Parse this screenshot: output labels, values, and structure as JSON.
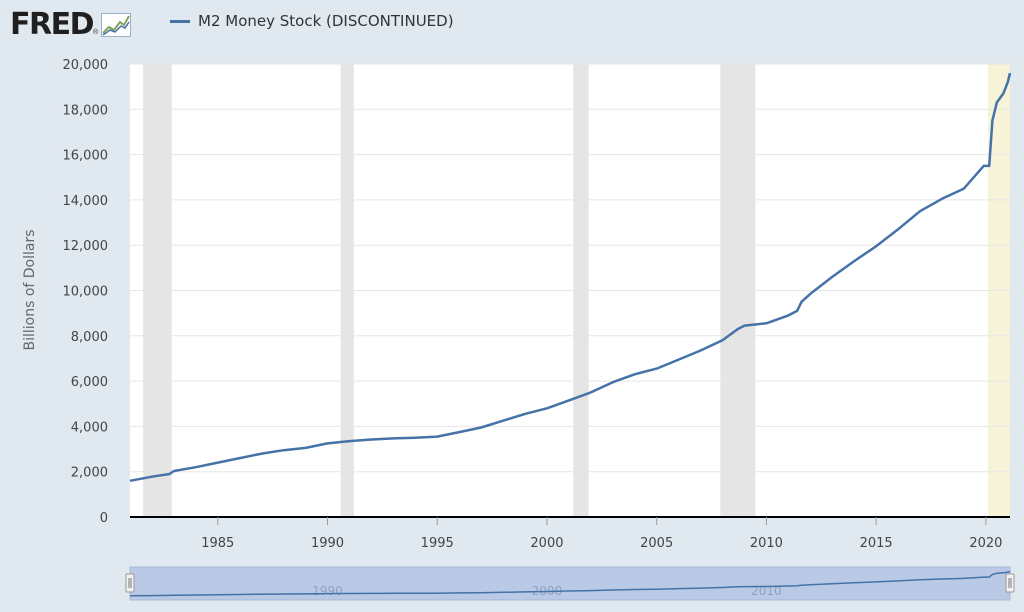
{
  "header": {
    "logo_text": "FRED",
    "logo_mark": "®"
  },
  "legend": {
    "label": "M2 Money Stock (DISCONTINUED)"
  },
  "colors": {
    "series": "#4572a7",
    "recession": "#e5e5e5",
    "highlight": "#f6f3d8",
    "background": "#e1e9f0",
    "navigator": "#b9c9e6"
  },
  "chart_data": {
    "type": "line",
    "title": "M2 Money Stock (DISCONTINUED)",
    "xlabel": "",
    "ylabel": "Billions of Dollars",
    "xlim": [
      1981.0,
      2021.1
    ],
    "ylim": [
      0,
      20000
    ],
    "yticks": [
      0,
      2000,
      4000,
      6000,
      8000,
      10000,
      12000,
      14000,
      16000,
      18000,
      20000
    ],
    "ytick_labels": [
      "0",
      "2,000",
      "4,000",
      "6,000",
      "8,000",
      "10,000",
      "12,000",
      "14,000",
      "16,000",
      "18,000",
      "20,000"
    ],
    "xticks": [
      1985,
      1990,
      1995,
      2000,
      2005,
      2010,
      2015,
      2020
    ],
    "xtick_labels": [
      "1985",
      "1990",
      "1995",
      "2000",
      "2005",
      "2010",
      "2015",
      "2020"
    ],
    "grid": true,
    "legend_position": "top-left",
    "recessions": [
      [
        1981.6,
        1982.9
      ],
      [
        1990.6,
        1991.2
      ],
      [
        2001.2,
        2001.9
      ],
      [
        2007.9,
        2009.5
      ]
    ],
    "highlight_range": [
      2020.1,
      2021.1
    ],
    "series": [
      {
        "name": "M2 Money Stock (DISCONTINUED)",
        "x": [
          1981.0,
          1982.0,
          1982.8,
          1983.0,
          1984.0,
          1985.0,
          1986.0,
          1987.0,
          1988.0,
          1989.0,
          1990.0,
          1991.0,
          1992.0,
          1993.0,
          1994.0,
          1995.0,
          1996.0,
          1997.0,
          1998.0,
          1999.0,
          2000.0,
          2001.0,
          2002.0,
          2003.0,
          2004.0,
          2005.0,
          2006.0,
          2007.0,
          2008.0,
          2008.7,
          2009.0,
          2010.0,
          2011.0,
          2011.4,
          2011.6,
          2012.0,
          2013.0,
          2014.0,
          2015.0,
          2016.0,
          2017.0,
          2018.0,
          2019.0,
          2019.9,
          2020.15,
          2020.3,
          2020.5,
          2020.8,
          2021.0,
          2021.1
        ],
        "y": [
          1600,
          1780,
          1900,
          2030,
          2200,
          2400,
          2600,
          2800,
          2950,
          3050,
          3250,
          3350,
          3420,
          3470,
          3500,
          3550,
          3750,
          3950,
          4250,
          4550,
          4800,
          5150,
          5500,
          5950,
          6300,
          6550,
          6950,
          7350,
          7800,
          8300,
          8450,
          8550,
          8900,
          9100,
          9500,
          9850,
          10600,
          11300,
          11950,
          12700,
          13500,
          14050,
          14500,
          15500,
          15500,
          17500,
          18300,
          18700,
          19200,
          19600
        ]
      }
    ]
  }
}
